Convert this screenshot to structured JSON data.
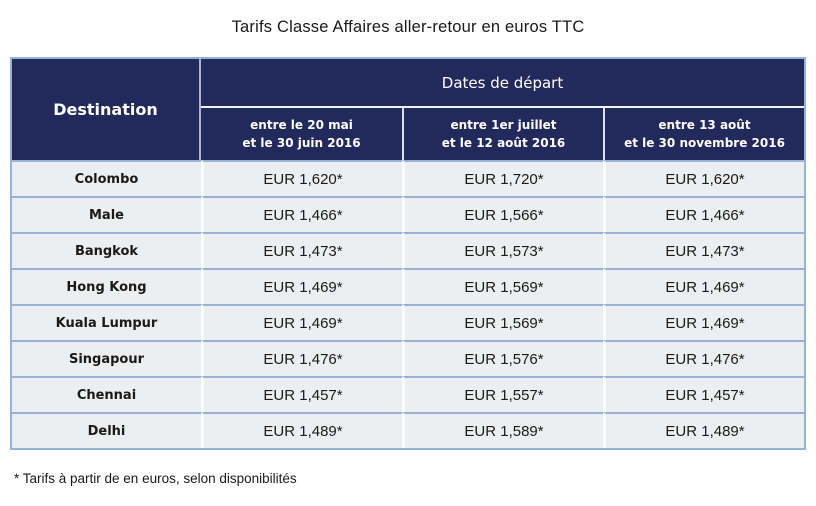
{
  "colors": {
    "header_navy": "#222A5C",
    "table_border_blue": "#95B3D7",
    "row_background": "#ECEEEF",
    "header_text": "#FFFFFF",
    "body_text": "#1A1A1A"
  },
  "chart_data": {
    "type": "table",
    "title": "Tarifs Classe Affaires aller-retour en euros TTC",
    "header": {
      "destination": "Destination",
      "group": "Dates de départ",
      "periods": [
        {
          "line1": "entre le 20 mai",
          "line2": "et le 30 juin 2016"
        },
        {
          "line1": "entre 1er juillet",
          "line2": "et le 12 août 2016"
        },
        {
          "line1": "entre 13 août",
          "line2": "et le 30 novembre 2016"
        }
      ]
    },
    "columns": [
      "Destination",
      "entre le 20 mai et le 30 juin 2016",
      "entre 1er juillet et le 12 août 2016",
      "entre 13 août et le 30 novembre 2016"
    ],
    "rows": [
      {
        "destination": "Colombo",
        "prices": [
          "EUR 1,620*",
          "EUR 1,720*",
          "EUR 1,620*"
        ]
      },
      {
        "destination": "Male",
        "prices": [
          "EUR 1,466*",
          "EUR 1,566*",
          "EUR 1,466*"
        ]
      },
      {
        "destination": "Bangkok",
        "prices": [
          "EUR 1,473*",
          "EUR 1,573*",
          "EUR 1,473*"
        ]
      },
      {
        "destination": "Hong Kong",
        "prices": [
          "EUR 1,469*",
          "EUR 1,569*",
          "EUR 1,469*"
        ]
      },
      {
        "destination": "Kuala Lumpur",
        "prices": [
          "EUR 1,469*",
          "EUR 1,569*",
          "EUR 1,469*"
        ]
      },
      {
        "destination": "Singapour",
        "prices": [
          "EUR 1,476*",
          "EUR 1,576*",
          "EUR 1,476*"
        ]
      },
      {
        "destination": "Chennai",
        "prices": [
          "EUR 1,457*",
          "EUR 1,557*",
          "EUR 1,457*"
        ]
      },
      {
        "destination": "Delhi",
        "prices": [
          "EUR 1,489*",
          "EUR 1,589*",
          "EUR 1,489*"
        ]
      }
    ],
    "footnote": "* Tarifs à partir de en euros, selon disponibilités"
  }
}
